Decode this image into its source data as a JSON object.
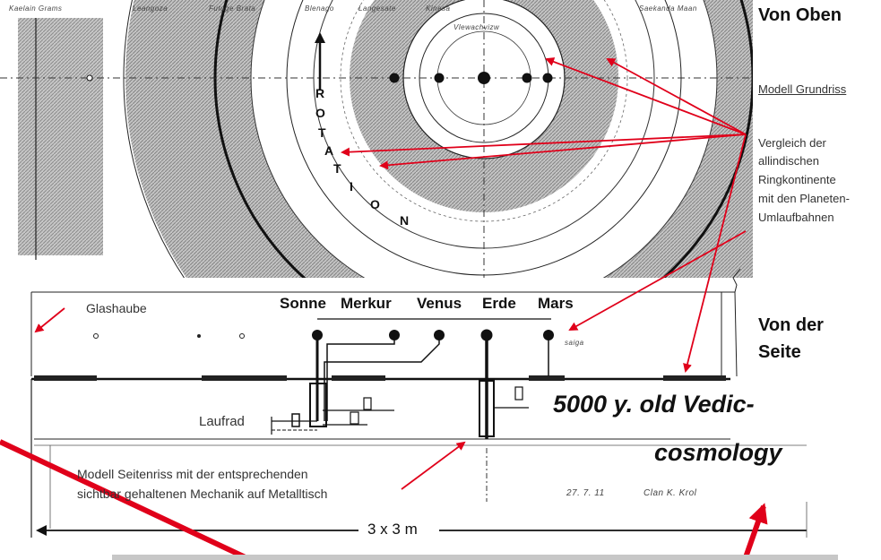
{
  "top_scribbles": [
    "Kaelain Grams",
    "Leangoza",
    "Futuge Brata",
    "Blenago",
    "Langesate",
    "Kinesa",
    "Saekanda Maan"
  ],
  "inner_ring_scribble": "Vlewachvizw",
  "side_right_labels": {
    "von_oben": "Von Oben",
    "modell_grundriss": "Modell Grundriss",
    "vergleich_lines": [
      "Vergleich der",
      "allindischen",
      "Ringkontinente",
      "mit den Planeten-",
      "Umlaufbahnen"
    ],
    "von_der": "Von der",
    "seite": "Seite"
  },
  "rotation_letters": [
    "R",
    "O",
    "T",
    "A",
    "T",
    "I",
    "O",
    "N"
  ],
  "planets": [
    "Sonne",
    "Merkur",
    "Venus",
    "Erde",
    "Mars"
  ],
  "glashaube": "Glashaube",
  "laufrad": "Laufrad",
  "mars_note": "saiga",
  "caption_lines": [
    "Modell Seitenriss   mit der entsprechenden",
    "sichtbar gehaltenen Mechanik auf Metalltisch"
  ],
  "date_signature": [
    "27. 7. 11",
    "Clan K. Krol"
  ],
  "dimension": "3 x 3 m",
  "overlay_text": [
    "5000 y. old Vedic-",
    "cosmology"
  ],
  "colors": {
    "arrow_red": "#e0001a",
    "ink": "#111111",
    "shade": "#8a8a8a"
  }
}
